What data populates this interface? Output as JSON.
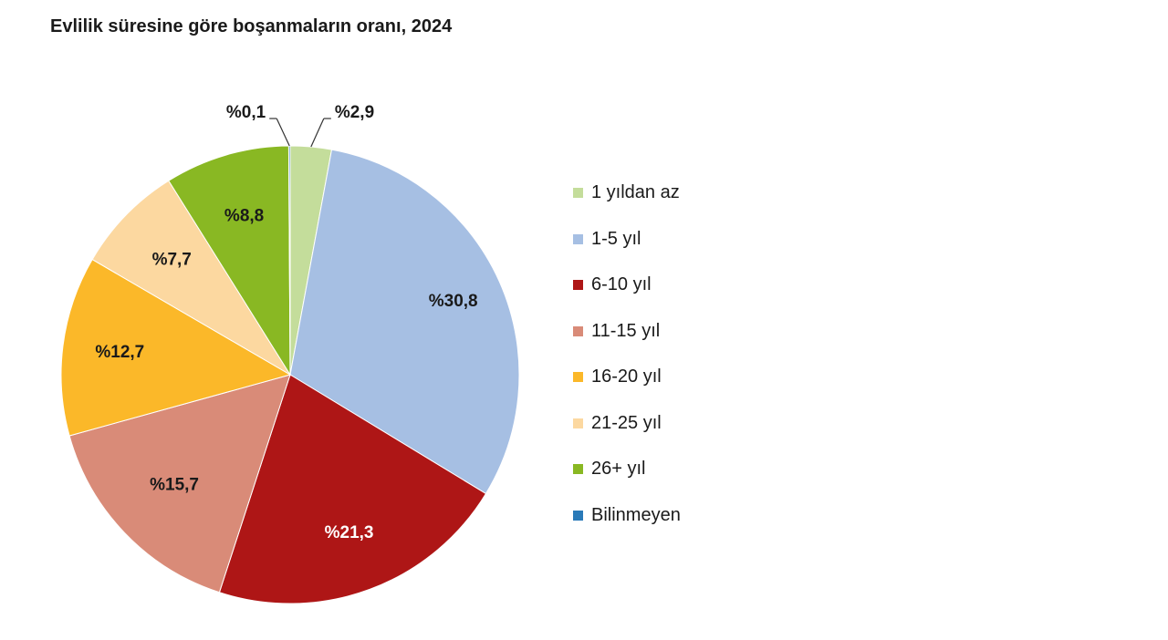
{
  "chart_data": {
    "type": "pie",
    "title": "Evlilik süresine göre boşanmaların oranı, 2024",
    "legend_position": "right",
    "slices": [
      {
        "name": "1 yıldan az",
        "value": 2.9,
        "label": "%2,9",
        "color": "#c4dd9b"
      },
      {
        "name": "1-5 yıl",
        "value": 30.8,
        "label": "%30,8",
        "color": "#a6bfe3"
      },
      {
        "name": "6-10 yıl",
        "value": 21.3,
        "label": "%21,3",
        "color": "#ae1616"
      },
      {
        "name": "11-15 yıl",
        "value": 15.7,
        "label": "%15,7",
        "color": "#d98b78"
      },
      {
        "name": "16-20 yıl",
        "value": 12.7,
        "label": "%12,7",
        "color": "#fbb829"
      },
      {
        "name": "21-25 yıl",
        "value": 7.7,
        "label": "%7,7",
        "color": "#fcd8a0"
      },
      {
        "name": "26+ yıl",
        "value": 8.8,
        "label": "%8,8",
        "color": "#89b823"
      },
      {
        "name": "Bilinmeyen",
        "value": 0.1,
        "label": "%0,1",
        "color": "#2a7ab8"
      }
    ]
  }
}
